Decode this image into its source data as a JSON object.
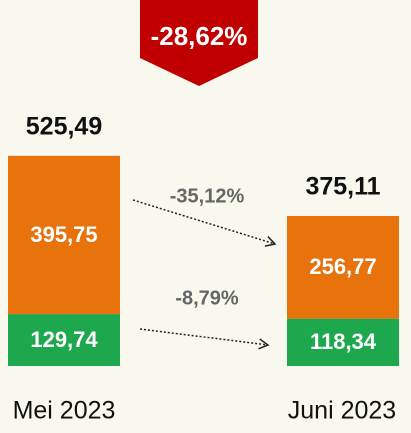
{
  "chart_data": {
    "type": "stacked_bar",
    "categories": [
      "Mei 2023",
      "Juni 2023"
    ],
    "series": [
      {
        "color": "#1ea84e",
        "values": [
          129.74,
          118.34
        ],
        "value_labels": [
          "129,74",
          "118,34"
        ]
      },
      {
        "color": "#e8720c",
        "values": [
          395.75,
          256.77
        ],
        "value_labels": [
          "395,75",
          "256,77"
        ]
      }
    ],
    "totals": {
      "values": [
        525.49,
        375.11
      ],
      "value_labels": [
        "525,49",
        "375,11"
      ]
    },
    "changes": [
      "-8,79%",
      "-35,12%"
    ],
    "total_change": "-28,62%"
  }
}
